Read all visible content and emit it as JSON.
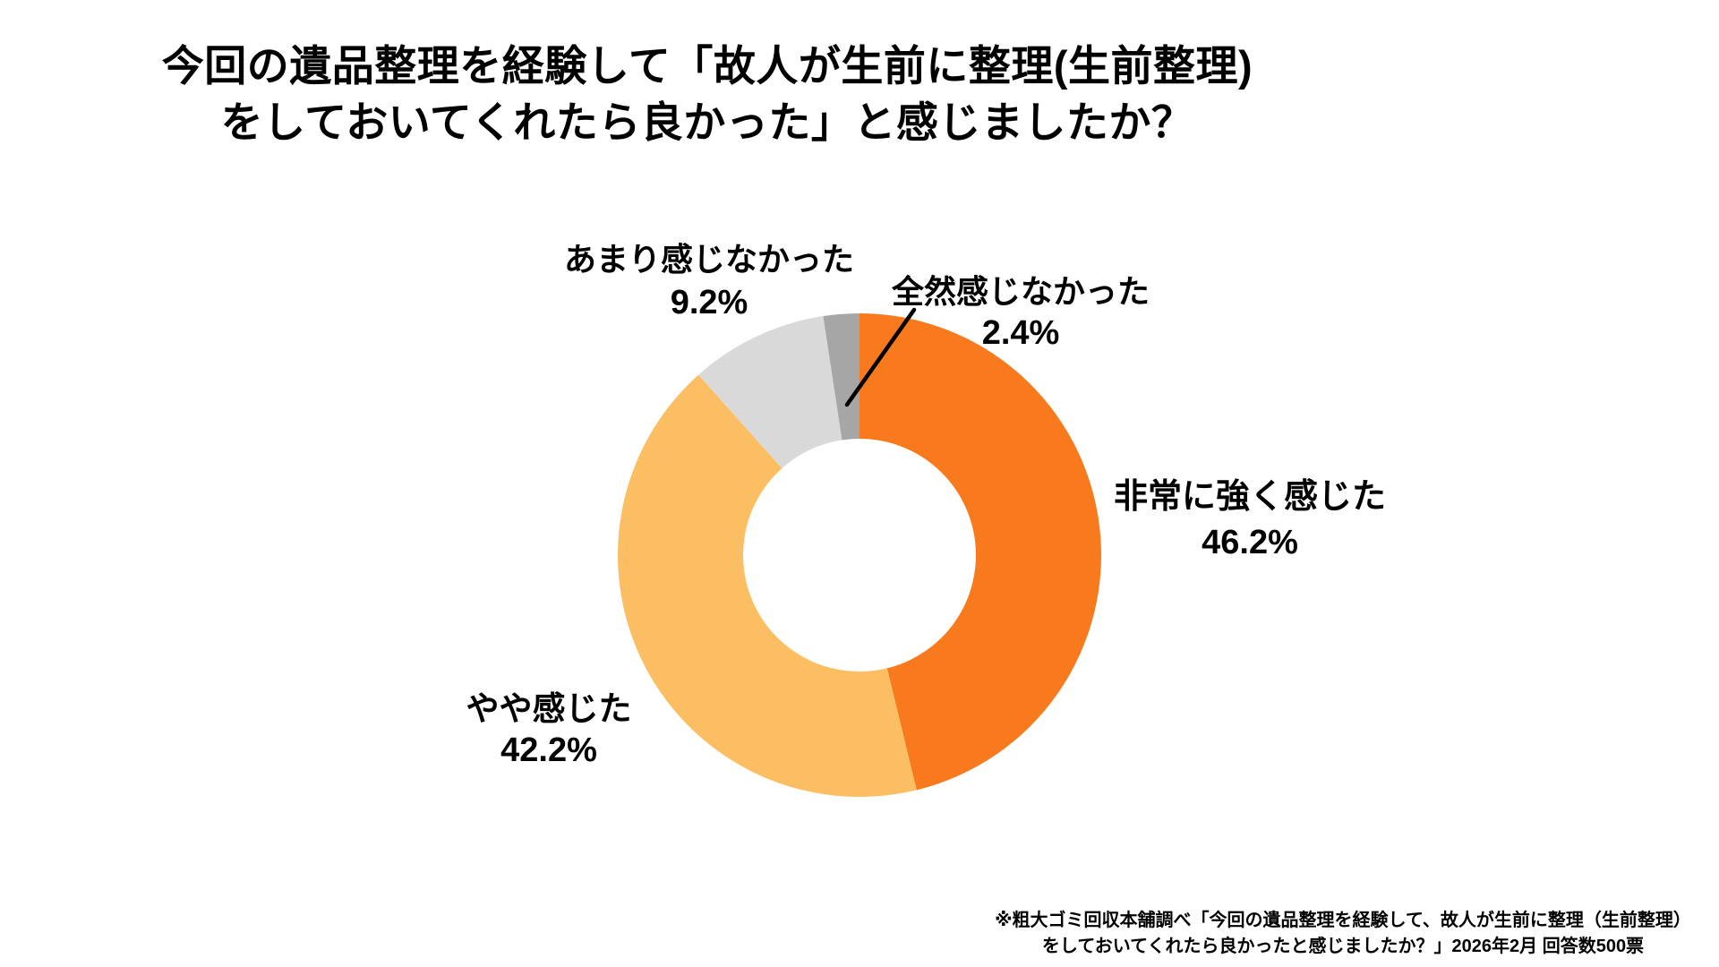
{
  "title": {
    "line1": "今回の遺品整理を経験して「故人が生前に整理(生前整理)",
    "line2": "をしておいてくれたら良かった」と感じましたか？"
  },
  "chart_data": {
    "type": "pie",
    "subtype": "donut",
    "title": "今回の遺品整理を経験して「故人が生前に整理(生前整理)をしておいてくれたら良かった」と感じましたか？",
    "start_angle_deg": 0,
    "direction": "clockwise",
    "hole_ratio": 0.48,
    "legend": "none",
    "background_color": "#ffffff",
    "text_color": "#000000",
    "segments": [
      {
        "label": "非常に強く感じた",
        "value": 46.2,
        "pct_text": "46.2%",
        "color": "#F87A1C"
      },
      {
        "label": "やや感じた",
        "value": 42.2,
        "pct_text": "42.2%",
        "color": "#FCBE63"
      },
      {
        "label": "あまり感じなかった",
        "value": 9.2,
        "pct_text": "9.2%",
        "color": "#D9D9D9"
      },
      {
        "label": "全然感じなかった",
        "value": 2.4,
        "pct_text": "2.4%",
        "color": "#A6A6A6"
      }
    ]
  },
  "footnote": {
    "line1": "※粗大ゴミ回収本舗調べ「今回の遺品整理を経験して、故人が生前に整理（生前整理）",
    "line2": "をしておいてくれたら良かったと感じましたか？」2026年2月 回答数500票"
  }
}
